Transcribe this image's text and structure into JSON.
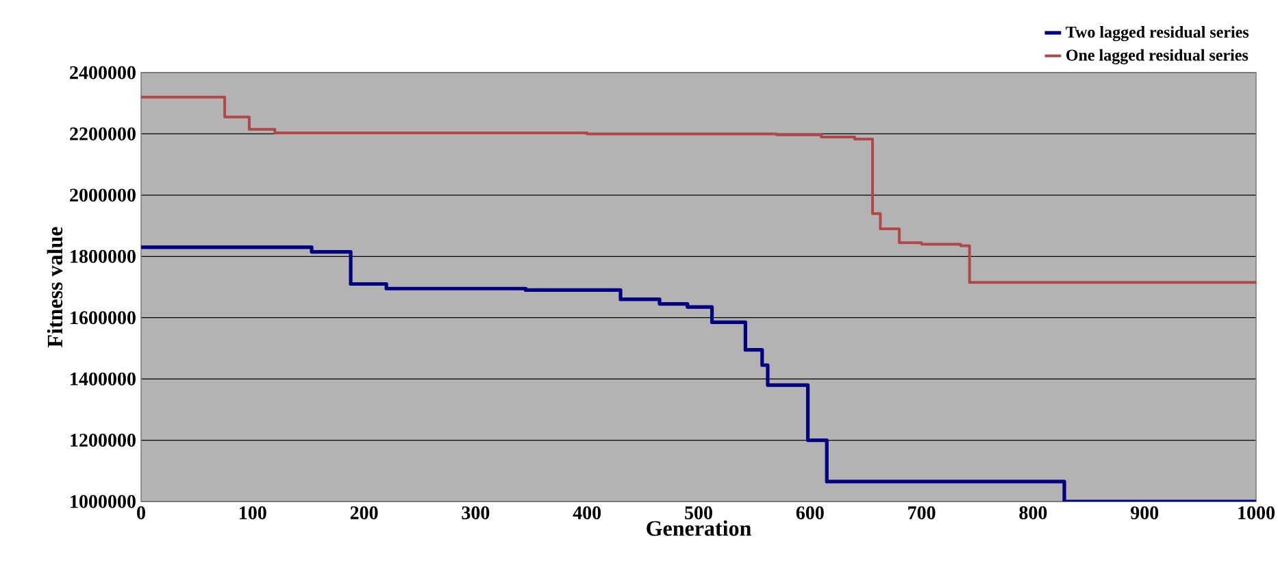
{
  "chart_data": {
    "type": "step",
    "xlabel": "Generation",
    "ylabel": "Fitness value",
    "xlim": [
      0,
      1000
    ],
    "ylim": [
      1000000,
      2400000
    ],
    "xticks": [
      0,
      100,
      200,
      300,
      400,
      500,
      600,
      700,
      800,
      900,
      1000
    ],
    "yticks": [
      1000000,
      1200000,
      1400000,
      1600000,
      1800000,
      2000000,
      2200000,
      2400000
    ],
    "grid": "y",
    "legend": "top right",
    "series": [
      {
        "name": "Two lagged residual series",
        "color": "#000080",
        "x": [
          0,
          153,
          188,
          220,
          345,
          430,
          465,
          490,
          512,
          542,
          557,
          562,
          598,
          615,
          828,
          1000
        ],
        "values": [
          1830000,
          1815000,
          1710000,
          1695000,
          1690000,
          1660000,
          1645000,
          1635000,
          1585000,
          1495000,
          1445000,
          1380000,
          1200000,
          1065000,
          1000000,
          1000000
        ]
      },
      {
        "name": "One lagged residual series",
        "color": "#b04848",
        "x": [
          0,
          75,
          97,
          120,
          400,
          570,
          610,
          640,
          656,
          663,
          680,
          700,
          735,
          743,
          1000
        ],
        "values": [
          2320000,
          2255000,
          2215000,
          2203000,
          2200000,
          2197000,
          2190000,
          2183000,
          1940000,
          1890000,
          1845000,
          1840000,
          1835000,
          1715000,
          1715000
        ]
      }
    ]
  }
}
